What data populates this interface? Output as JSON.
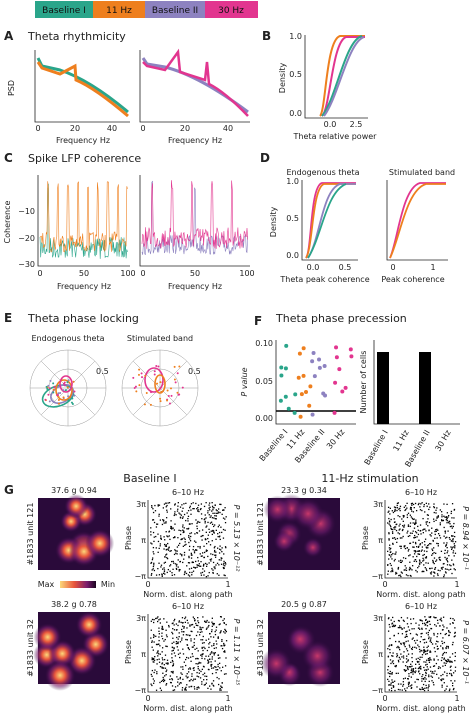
{
  "legend": [
    "Baseline I",
    "11 Hz",
    "Baseline II",
    "30 Hz"
  ],
  "panel_a": {
    "label": "A",
    "title": "Theta rhythmicity",
    "ylabel": "PSD",
    "xlabel": [
      "Frequency Hz",
      "Frequency Hz"
    ],
    "xticks": [
      "0",
      "20",
      "40",
      "0",
      "20",
      "40"
    ]
  },
  "panel_b": {
    "label": "B",
    "ylabel": "Density",
    "xlabel": "Theta relative power",
    "xticks": [
      "0.0",
      "2.5"
    ],
    "yticks": [
      "1.0",
      "0.5",
      "0.0"
    ]
  },
  "panel_c": {
    "label": "C",
    "title": "Spike LFP coherence",
    "ylabel": "Coherence",
    "xlabel": [
      "Frequency Hz",
      "Frequency Hz"
    ],
    "yticks": [
      "−10",
      "−20",
      "−30"
    ],
    "xticks": [
      "0",
      "50",
      "100",
      "0",
      "50",
      "100"
    ]
  },
  "panel_d": {
    "label": "D",
    "subtitles": [
      "Endogenous theta",
      "Stimulated band"
    ],
    "ylabel": "Density",
    "yticks": [
      "1.0",
      "0.5",
      "0.0"
    ],
    "xticks": [
      "0.0",
      "0.5",
      "0",
      "1"
    ],
    "xlabel": [
      "Theta peak coherence",
      "Peak coherence"
    ]
  },
  "panel_e": {
    "label": "E",
    "title": "Theta phase locking",
    "subtitles": [
      "Endogenous theta",
      "Stimulated band"
    ],
    "radius_labels": [
      "0.5",
      "0.5"
    ]
  },
  "panel_f": {
    "label": "F",
    "title": "Theta phase precession",
    "ylabel": "P value",
    "yticks": [
      "0.10",
      "0.05",
      "0.00"
    ],
    "categories": [
      "Baseline I",
      "11 Hz",
      "Baseline II",
      "30 Hz"
    ],
    "bar_ylabel": "Number of cells",
    "bar_values": [
      9,
      0,
      9,
      0
    ]
  },
  "panel_g": {
    "label": "G",
    "columns": [
      "Baseline I",
      "11-Hz stimulation"
    ],
    "scores": [
      "37.6 g 0.94",
      "38.2 g 0.78",
      "23.3 g 0.34",
      "20.5 g 0.87"
    ],
    "units": [
      "#1833 unit 121",
      "#1833 unit 32",
      "#1833 Unit 121",
      "#1833 unit 32"
    ],
    "colorbar": [
      "Max",
      "Min"
    ],
    "band": [
      "6–10 Hz",
      "6–10 Hz",
      "6–10 Hz",
      "6–10 Hz"
    ],
    "ylabel": "Phase",
    "xlabel": "Norm. dist. along path",
    "yticks": [
      "3π",
      "π",
      "−π"
    ],
    "xticks": [
      "0",
      "1"
    ],
    "p_values": [
      "P = 5.13 × 10⁻¹²",
      "P = 1.11 × 10⁻¹⁵",
      "P = 8.94 × 10⁻¹",
      "P = 6.07 × 10⁻¹"
    ]
  }
}
